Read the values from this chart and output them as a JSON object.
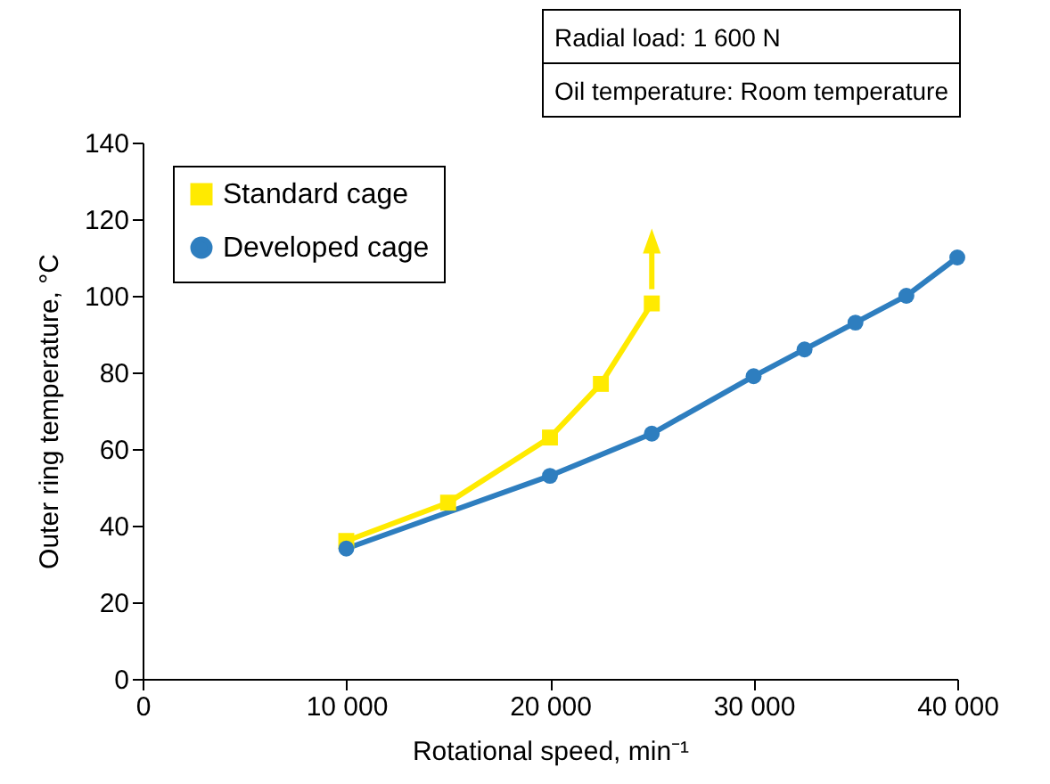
{
  "chart_data": {
    "type": "line",
    "xlabel": "Rotational speed, min⁻¹",
    "ylabel": "Outer ring temperature, °C",
    "annotations": [
      "Radial load: 1 600 N",
      "Oil temperature: Room temperature"
    ],
    "series": [
      {
        "name": "Standard cage",
        "color": "#ffea00",
        "marker": "square",
        "x": [
          10000,
          15000,
          20000,
          22500,
          25000
        ],
        "values": [
          36,
          46,
          63,
          77,
          98
        ]
      },
      {
        "name": "Developed cage",
        "color": "#2e7ebf",
        "marker": "circle",
        "x": [
          10000,
          20000,
          25000,
          30000,
          32500,
          35000,
          37500,
          40000
        ],
        "values": [
          34,
          53,
          64,
          79,
          86,
          93,
          100,
          110
        ]
      }
    ],
    "xlim": [
      0,
      40000
    ],
    "xticks": [
      0,
      {
        "value": 10000,
        "label": "10 000"
      },
      {
        "value": 20000,
        "label": "20 000"
      },
      {
        "value": 30000,
        "label": "30 000"
      },
      {
        "value": 40000,
        "label": "40 000"
      }
    ],
    "ylim": [
      0,
      140
    ],
    "yticks": [
      0,
      20,
      40,
      60,
      80,
      100,
      120,
      140
    ],
    "grid": false,
    "legend": "top left",
    "line_style": "solid"
  }
}
